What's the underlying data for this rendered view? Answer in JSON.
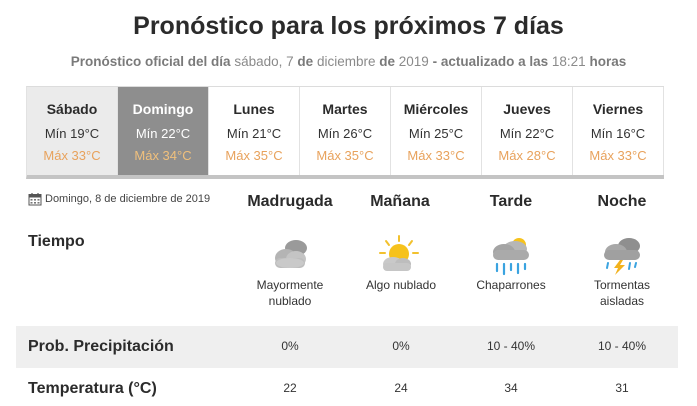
{
  "header": {
    "title": "Pronóstico para los próximos 7 días",
    "subtitle_prefix": "Pronóstico oficial del día",
    "subtitle_date_part1": "sábado, 7",
    "subtitle_de": "de",
    "subtitle_date_part2": "diciembre",
    "subtitle_de2": "de",
    "subtitle_year": "2019",
    "subtitle_updated": "- actualizado a las",
    "subtitle_time": "18:21",
    "subtitle_hours": "horas"
  },
  "days": [
    {
      "name": "Sábado",
      "min": "Mín 19°C",
      "max": "Máx 33°C"
    },
    {
      "name": "Domingo",
      "min": "Mín 22°C",
      "max": "Máx 34°C"
    },
    {
      "name": "Lunes",
      "min": "Mín 21°C",
      "max": "Máx 35°C"
    },
    {
      "name": "Martes",
      "min": "Mín 26°C",
      "max": "Máx 35°C"
    },
    {
      "name": "Miércoles",
      "min": "Mín 25°C",
      "max": "Máx 33°C"
    },
    {
      "name": "Jueves",
      "min": "Mín 22°C",
      "max": "Máx 28°C"
    },
    {
      "name": "Viernes",
      "min": "Mín 16°C",
      "max": "Máx 33°C"
    }
  ],
  "selected_day": "Domingo",
  "detail": {
    "date": "Domingo, 8 de diciembre de 2019",
    "date_icon": "calendar-icon",
    "periods": [
      "Madrugada",
      "Mañana",
      "Tarde",
      "Noche"
    ],
    "tiempo_label": "Tiempo",
    "weather": [
      {
        "icon": "cloudy-night-icon",
        "desc_line1": "Mayormente",
        "desc_line2": "nublado"
      },
      {
        "icon": "partly-cloudy-sun-icon",
        "desc_line1": "Algo nublado",
        "desc_line2": ""
      },
      {
        "icon": "showers-icon",
        "desc_line1": "Chaparrones",
        "desc_line2": ""
      },
      {
        "icon": "isolated-storms-icon",
        "desc_line1": "Tormentas",
        "desc_line2": "aisladas"
      }
    ],
    "precip_label": "Prob. Precipitación",
    "precip": [
      "0%",
      "0%",
      "10 - 40%",
      "10 - 40%"
    ],
    "temp_label": "Temperatura (°C)",
    "temps": [
      "22",
      "24",
      "34",
      "31"
    ]
  },
  "colors": {
    "max_temp": "#e8a25c",
    "selected_tab": "#8e8e8e",
    "past_tab": "#ebebeb",
    "band": "#efefef"
  }
}
